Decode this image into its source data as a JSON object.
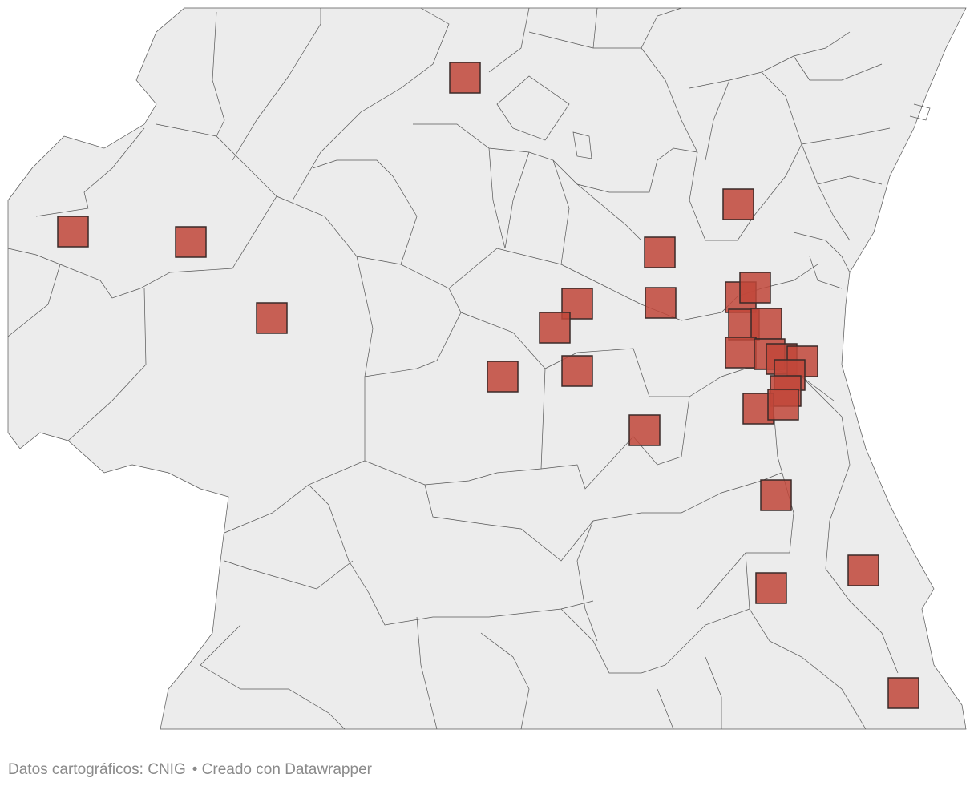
{
  "footer": {
    "source": "Datos cartográficos: CNIG",
    "credit": "• Creado con Datawrapper"
  }
}
